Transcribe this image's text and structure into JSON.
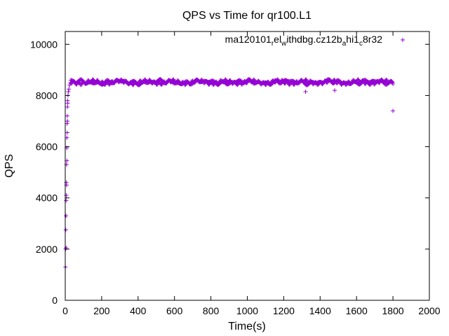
{
  "chart_data": {
    "type": "scatter",
    "title": "QPS vs Time for qr100.L1",
    "xlabel": "Time(s)",
    "ylabel": "QPS",
    "xlim": [
      0,
      2000
    ],
    "ylim": [
      0,
      10500
    ],
    "x_ticks": [
      "0",
      "200",
      "400",
      "600",
      "800",
      "1000",
      "1200",
      "1400",
      "1600",
      "1800",
      "2000"
    ],
    "y_ticks": [
      "0",
      "2000",
      "4000",
      "6000",
      "8000",
      "10000"
    ],
    "grid": false,
    "legend_position": "top-right",
    "series": [
      {
        "name": "ma120101_rel_withdbg.cz12b_ahi1_c8r32",
        "legend_parts": [
          {
            "text": "ma120101",
            "sub": false
          },
          {
            "text": "r",
            "sub": true
          },
          {
            "text": "el",
            "sub": false
          },
          {
            "text": "w",
            "sub": true
          },
          {
            "text": "ithdbg.cz12b",
            "sub": false
          },
          {
            "text": "a",
            "sub": true
          },
          {
            "text": "hi1",
            "sub": false
          },
          {
            "text": "c",
            "sub": true
          },
          {
            "text": "8r32",
            "sub": false
          }
        ],
        "color": "#9400d3",
        "marker": "plus",
        "ramp_points": [
          [
            1,
            1300
          ],
          [
            2,
            2000
          ],
          [
            3,
            2750
          ],
          [
            4,
            3300
          ],
          [
            5,
            3900
          ],
          [
            6,
            4600
          ],
          [
            7,
            5300
          ],
          [
            8,
            5950
          ],
          [
            9,
            6350
          ],
          [
            10,
            6900
          ],
          [
            11,
            7200
          ],
          [
            12,
            7550
          ],
          [
            13,
            7800
          ],
          [
            15,
            8000
          ],
          [
            17,
            8150
          ],
          [
            20,
            8250
          ],
          [
            24,
            8400
          ],
          [
            28,
            8480
          ]
        ],
        "steady_state": {
          "x_start": 30,
          "x_end": 1800,
          "step": 4,
          "mean": 8520,
          "spread": 120
        },
        "outlier_points": [
          [
            5,
            2050
          ],
          [
            6,
            4100
          ],
          [
            7,
            4500
          ],
          [
            9,
            5450
          ],
          [
            11,
            6550
          ],
          [
            12,
            7000
          ],
          [
            14,
            7700
          ],
          [
            1320,
            8150
          ],
          [
            1480,
            8200
          ],
          [
            1800,
            7400
          ]
        ]
      }
    ]
  }
}
